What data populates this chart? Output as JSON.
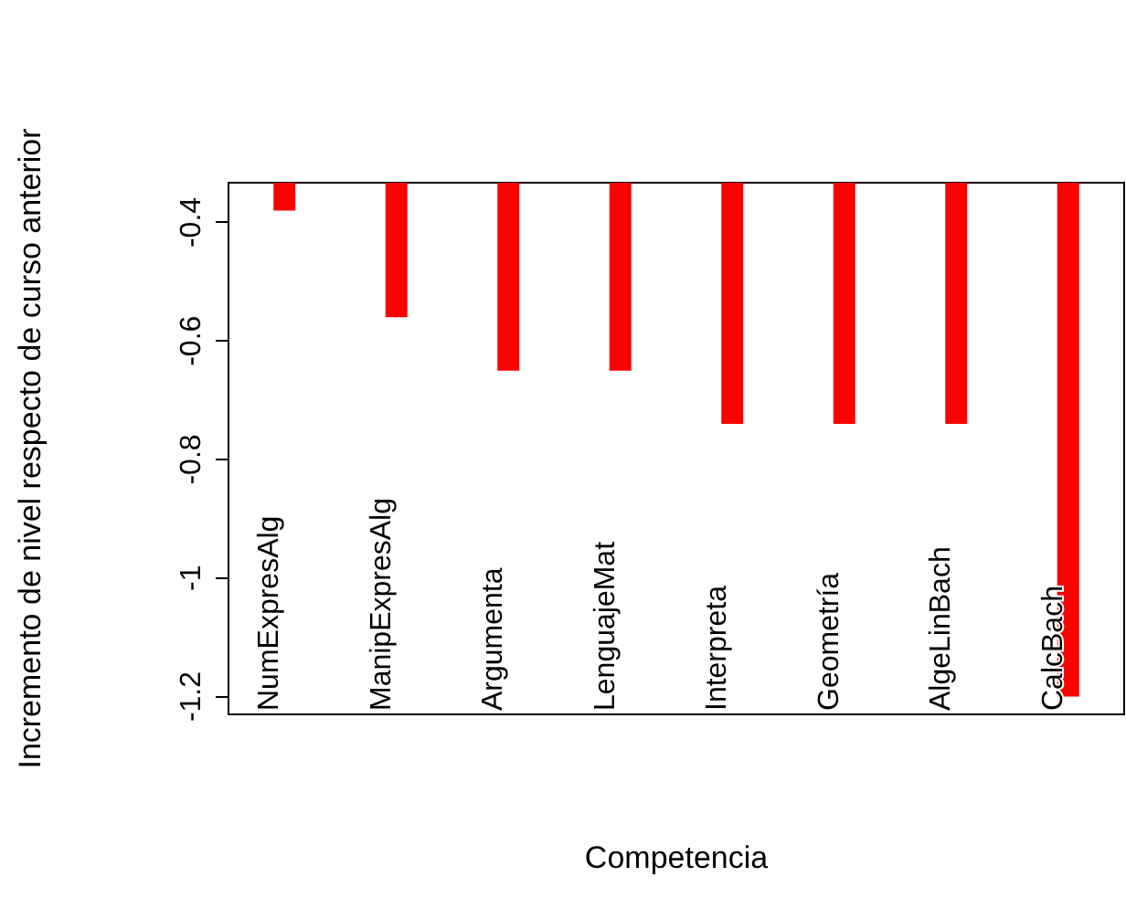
{
  "chart_data": {
    "type": "bar",
    "xlabel": "Competencia",
    "ylabel": "Incremento de nivel respecto de curso anterior",
    "categories": [
      "NumExpresAlg",
      "ManipExpresAlg",
      "Argumenta",
      "LenguajeMat",
      "Interpreta",
      "Geometría",
      "AlgeLinBach",
      "CalcBach"
    ],
    "values": [
      -0.38,
      -0.56,
      -0.65,
      -0.65,
      -0.74,
      -0.74,
      -0.74,
      -1.2
    ],
    "color": "#ff0000",
    "ylim": [
      -1.23,
      -0.333
    ],
    "yticks": [
      -1.2,
      -1.0,
      -0.8,
      -0.6,
      -0.4
    ],
    "grid": false
  }
}
